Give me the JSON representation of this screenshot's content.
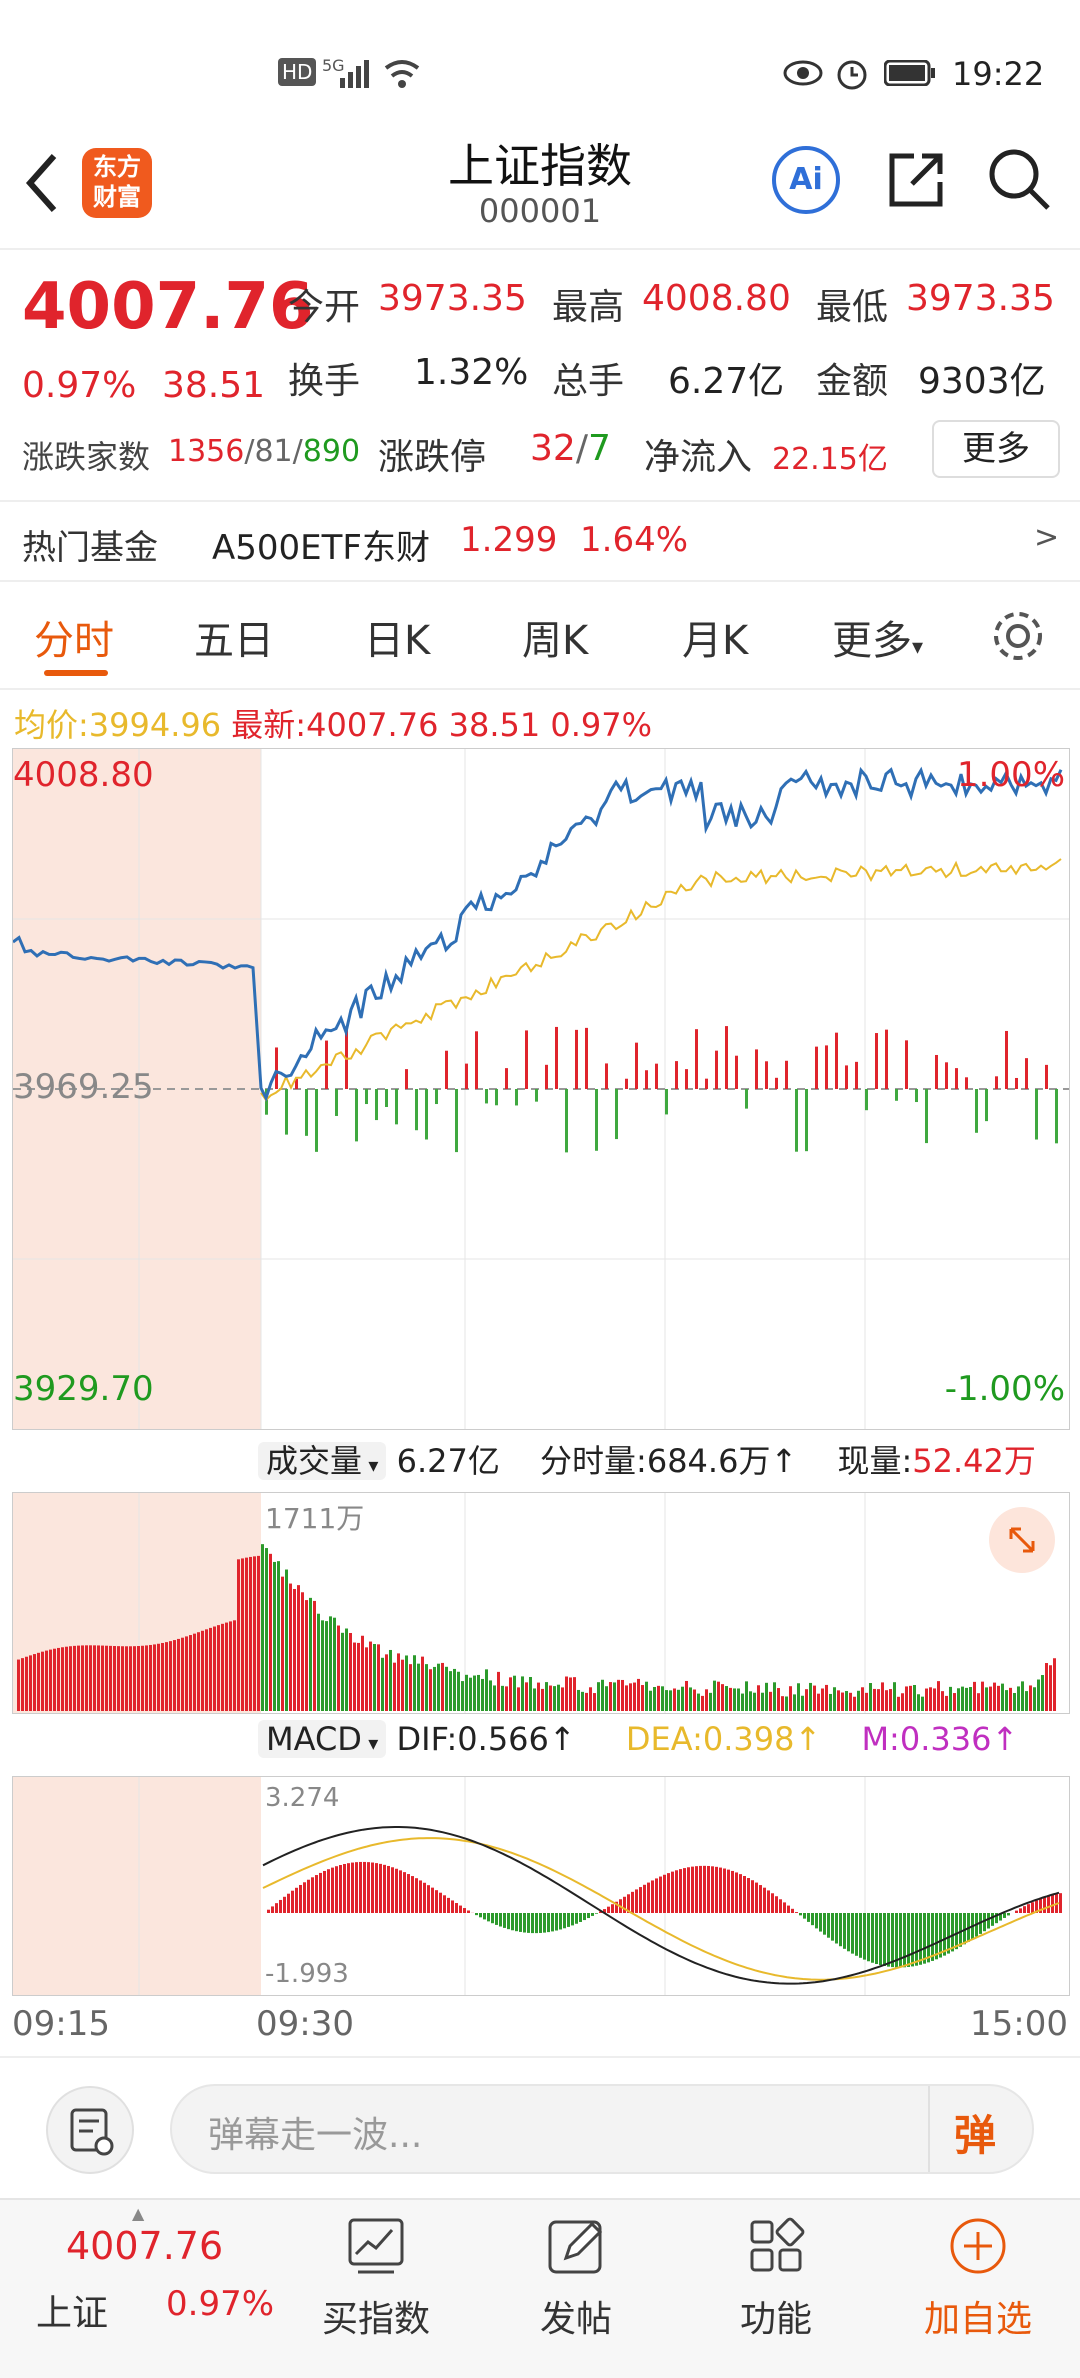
{
  "status": {
    "time": "19:22",
    "hd": "HD",
    "net": "5G"
  },
  "header": {
    "back": "back",
    "logo_line1": "东方",
    "logo_line2": "财富",
    "title": "上证指数",
    "code": "000001"
  },
  "quote": {
    "price": "4007.76",
    "pct": "0.97%",
    "chg": "38.51",
    "open_label": "今开",
    "open": "3973.35",
    "high_label": "最高",
    "high": "4008.80",
    "low_label": "最低",
    "low": "3973.35",
    "turnover_label": "换手",
    "turnover": "1.32%",
    "vol_label": "总手",
    "vol": "6.27亿",
    "amt_label": "金额",
    "amt": "9303亿",
    "breadth_label": "涨跌家数",
    "breadth_up": "1356",
    "breadth_flat": "81",
    "breadth_down": "890",
    "limit_label": "涨跌停",
    "limit_up": "32",
    "limit_down": "7",
    "inflow_label": "净流入",
    "inflow": "22.15亿",
    "more": "更多"
  },
  "fund": {
    "label": "热门基金",
    "name": "A500ETF东财",
    "price": "1.299",
    "pct": "1.64%",
    "arrow": ">"
  },
  "tabs": [
    "分时",
    "五日",
    "日K",
    "周K",
    "月K",
    "更多"
  ],
  "avgline": {
    "avg_label": "均价:",
    "avg": "3994.96",
    "latest_label": "最新:",
    "latest": "4007.76",
    "chg": "38.51",
    "pct": "0.97%"
  },
  "main_chart": {
    "ymax": "4008.80",
    "ymid": "3969.25",
    "ymin": "3929.70",
    "pmax": "1.00%",
    "pmin": "-1.00%"
  },
  "vol_bar": {
    "selector": "成交量",
    "total": "6.27亿",
    "ts_label": "分时量:",
    "ts_val": "684.6万",
    "now_label": "现量:",
    "now_val": "52.42万",
    "peak": "1711万"
  },
  "macd": {
    "selector": "MACD",
    "dif": "DIF:0.566",
    "dea": "DEA:0.398",
    "m": "M:0.336",
    "top": "3.274",
    "bottom": "-1.993"
  },
  "time_axis": [
    "09:15",
    "09:30",
    "15:00"
  ],
  "danmaku": {
    "placeholder": "弹幕走一波...",
    "btn": "弹"
  },
  "bottom_nav": {
    "index_price": "4007.76",
    "index_name": "上证",
    "index_pct": "0.97%",
    "buy": "买指数",
    "post": "发帖",
    "func": "功能",
    "add": "加自选"
  },
  "colors": {
    "up": "#e0242c",
    "down": "#1f9a1f",
    "accent": "#e8590c",
    "price_line": "#2f6fb5",
    "avg_line": "#e8b92c",
    "macd_m": "#c02fc0"
  }
}
